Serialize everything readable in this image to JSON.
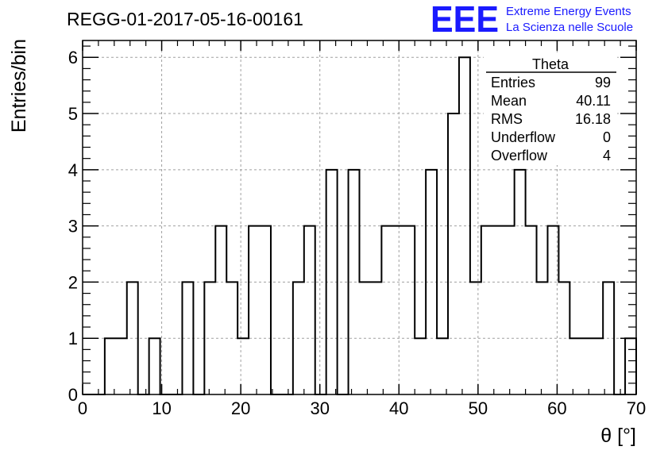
{
  "header": {
    "run_title": "REGG-01-2017-05-16-00161",
    "logo_text": "EEE",
    "org_line1": "Extreme Energy Events",
    "org_line2": "La Scienza nelle Scuole"
  },
  "colors": {
    "logo_blue": "#1a1aff",
    "histogram_line": "#000000",
    "grid": "#a0a0a0"
  },
  "stats_box": {
    "title": "Theta",
    "rows": [
      {
        "label": "Entries",
        "value": "99"
      },
      {
        "label": "Mean",
        "value": "40.11"
      },
      {
        "label": "RMS",
        "value": "16.18"
      },
      {
        "label": "Underflow",
        "value": "0"
      },
      {
        "label": "Overflow",
        "value": "4"
      }
    ]
  },
  "chart_data": {
    "type": "bar",
    "style": "step histogram",
    "title": "",
    "xlabel": "θ [°]",
    "ylabel": "Entries/bin",
    "xlim": [
      0,
      70
    ],
    "ylim": [
      0,
      6.3
    ],
    "grid": true,
    "x_ticks": [
      "0",
      "10",
      "20",
      "30",
      "40",
      "50",
      "60",
      "70"
    ],
    "y_ticks": [
      "0",
      "1",
      "2",
      "3",
      "4",
      "5",
      "6"
    ],
    "bin_width": 1.4,
    "bin_edges": [
      0,
      1.4,
      2.8,
      4.2,
      5.6,
      7.0,
      8.4,
      9.8,
      11.2,
      12.6,
      14.0,
      15.4,
      16.8,
      18.2,
      19.6,
      21.0,
      22.4,
      23.8,
      25.2,
      26.6,
      28.0,
      29.4,
      30.8,
      32.2,
      33.6,
      35.0,
      36.4,
      37.8,
      39.2,
      40.6,
      42.0,
      43.4,
      44.8,
      46.2,
      47.6,
      49.0,
      50.4,
      51.8,
      53.2,
      54.6,
      56.0,
      57.4,
      58.8,
      60.2,
      61.6,
      63.0,
      64.4,
      65.8,
      67.2,
      68.6,
      70.0
    ],
    "values": [
      0,
      0,
      1,
      1,
      2,
      0,
      1,
      0,
      0,
      2,
      0,
      2,
      3,
      2,
      1,
      3,
      3,
      0,
      0,
      2,
      3,
      0,
      4,
      0,
      4,
      2,
      2,
      3,
      3,
      3,
      1,
      4,
      1,
      5,
      6,
      2,
      3,
      3,
      3,
      4,
      3,
      2,
      3,
      2,
      1,
      1,
      1,
      2,
      0,
      1
    ]
  }
}
